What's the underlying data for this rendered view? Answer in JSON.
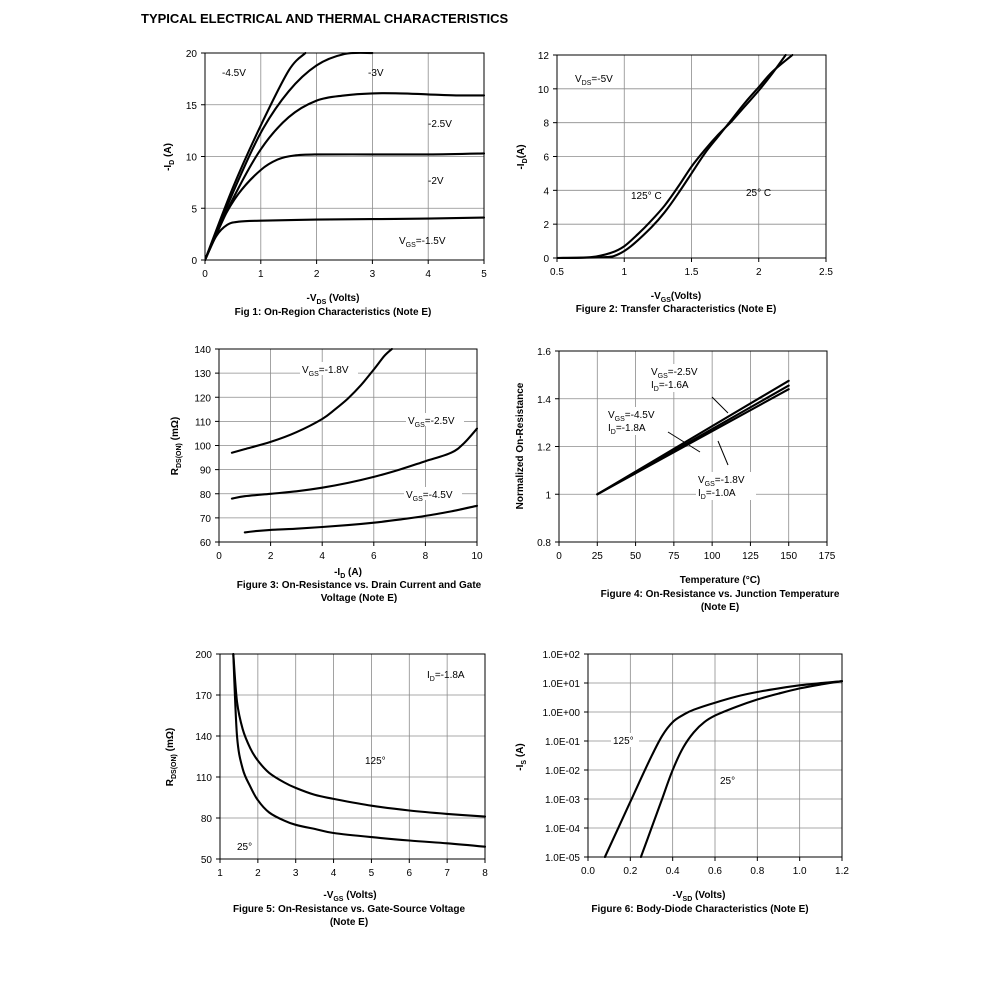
{
  "page": {
    "title": "TYPICAL ELECTRICAL AND THERMAL CHARACTERISTICS"
  },
  "chart_data": [
    {
      "type": "line",
      "xlabel": "-VDS (Volts)",
      "ylabel": "-ID (A)",
      "caption": "Fig 1: On-Region Characteristics (Note E)",
      "xlim": [
        0,
        5
      ],
      "ylim": [
        0,
        20
      ],
      "xticks": [
        0,
        1,
        2,
        3,
        4,
        5
      ],
      "yticks": [
        0,
        5,
        10,
        15,
        20
      ],
      "tick_labels_x": [
        "0",
        "1",
        "2",
        "3",
        "4",
        "5"
      ],
      "tick_labels_y": [
        "0",
        "5",
        "10",
        "15",
        "20"
      ],
      "grid": true,
      "series": [
        {
          "name": "-4.5V",
          "x": [
            0,
            0.5,
            1.0,
            1.5,
            1.8
          ],
          "y": [
            0,
            7,
            13,
            18.3,
            20
          ]
        },
        {
          "name": "-3V",
          "x": [
            0,
            0.5,
            1.0,
            1.5,
            2.0,
            2.5,
            3.0
          ],
          "y": [
            0,
            6.5,
            12.3,
            16.3,
            18.8,
            19.9,
            20
          ]
        },
        {
          "name": "-2.5V",
          "x": [
            0,
            0.5,
            1.0,
            1.5,
            2.0,
            2.5,
            3.0,
            3.5,
            4.0,
            4.5,
            5.0
          ],
          "y": [
            0,
            5.9,
            10.7,
            13.8,
            15.4,
            15.9,
            16.1,
            16.1,
            16.0,
            15.9,
            15.9
          ]
        },
        {
          "name": "-2V",
          "x": [
            0,
            0.3,
            0.6,
            1.0,
            1.3,
            1.6,
            2.0,
            3.0,
            4.0,
            5.0
          ],
          "y": [
            0,
            3.7,
            6.4,
            8.7,
            9.7,
            10.1,
            10.2,
            10.2,
            10.2,
            10.3
          ]
        },
        {
          "name": "VGS=-1.5V",
          "x": [
            0,
            0.2,
            0.4,
            0.6,
            1.0,
            2.0,
            3.0,
            4.0,
            5.0
          ],
          "y": [
            0,
            2.3,
            3.4,
            3.7,
            3.8,
            3.9,
            3.95,
            4.0,
            4.1
          ]
        }
      ],
      "labels": [
        "-4.5V",
        "-3V",
        "-2.5V",
        "-2V",
        "VGS=-1.5V"
      ]
    },
    {
      "type": "line",
      "xlabel": "-VGS(Volts)",
      "ylabel": "-ID(A)",
      "caption": "Figure 2: Transfer Characteristics (Note E)",
      "xlim": [
        0.5,
        2.5
      ],
      "ylim": [
        0,
        12
      ],
      "xticks": [
        0.5,
        1,
        1.5,
        2,
        2.5
      ],
      "yticks": [
        0,
        2,
        4,
        6,
        8,
        10,
        12
      ],
      "tick_labels_x": [
        "0.5",
        "1",
        "1.5",
        "2",
        "2.5"
      ],
      "tick_labels_y": [
        "0",
        "2",
        "4",
        "6",
        "8",
        "10",
        "12"
      ],
      "grid": true,
      "series": [
        {
          "name": "125° C",
          "x": [
            0.5,
            0.75,
            0.9,
            1.0,
            1.1,
            1.2,
            1.3,
            1.4,
            1.5,
            1.6,
            1.7,
            1.8,
            1.9,
            2.0,
            2.1,
            2.2
          ],
          "y": [
            0,
            0.05,
            0.3,
            0.7,
            1.4,
            2.2,
            3.1,
            4.2,
            5.4,
            6.4,
            7.3,
            8.1,
            9.0,
            9.9,
            10.9,
            12.0
          ]
        },
        {
          "name": "25° C",
          "x": [
            0.5,
            0.85,
            0.95,
            1.05,
            1.2,
            1.3,
            1.4,
            1.5,
            1.6,
            1.7,
            1.8,
            1.9,
            2.0,
            2.1,
            2.25
          ],
          "y": [
            0,
            0.05,
            0.2,
            0.7,
            1.8,
            2.7,
            3.8,
            5.0,
            6.2,
            7.2,
            8.2,
            9.2,
            10.1,
            11.0,
            12.0
          ]
        }
      ],
      "labels": [
        "VDS=-5V",
        "125° C",
        "25° C"
      ]
    },
    {
      "type": "line",
      "xlabel": "-ID (A)",
      "ylabel": "RDS(ON) (mΩ)",
      "caption_lines": [
        "Figure 3: On-Resistance vs. Drain Current and Gate",
        "Voltage (Note E)"
      ],
      "xlim": [
        0,
        10
      ],
      "ylim": [
        60,
        140
      ],
      "xticks": [
        0,
        2,
        4,
        6,
        8,
        10
      ],
      "yticks": [
        60,
        70,
        80,
        90,
        100,
        110,
        120,
        130,
        140
      ],
      "tick_labels_x": [
        "0",
        "2",
        "4",
        "6",
        "8",
        "10"
      ],
      "tick_labels_y": [
        "60",
        "70",
        "80",
        "90",
        "100",
        "110",
        "120",
        "130",
        "140"
      ],
      "grid": true,
      "series": [
        {
          "name": "VGS=-1.8V",
          "x": [
            0.5,
            1.0,
            2.0,
            3.0,
            4.0,
            4.5,
            5.0,
            5.5,
            6.0,
            6.4,
            6.7
          ],
          "y": [
            97,
            98.5,
            101.5,
            105.5,
            111,
            115,
            119.5,
            125,
            131.5,
            137,
            140
          ]
        },
        {
          "name": "VGS=-2.5V",
          "x": [
            0.5,
            1.0,
            2.0,
            3.0,
            4.0,
            5.0,
            6.0,
            7.0,
            8.0,
            9.0,
            9.5,
            10.0
          ],
          "y": [
            78,
            79,
            80,
            81,
            82.5,
            84.5,
            87,
            90,
            93.5,
            97,
            101,
            107
          ]
        },
        {
          "name": "VGS=-4.5V",
          "x": [
            1.0,
            1.5,
            2.0,
            3.0,
            4.0,
            5.0,
            6.0,
            7.0,
            8.0,
            9.0,
            10.0
          ],
          "y": [
            64,
            64.6,
            65,
            65.5,
            66.2,
            67,
            68,
            69.3,
            70.8,
            72.7,
            75
          ]
        }
      ],
      "labels": [
        "VGS=-1.8V",
        "VGS=-2.5V",
        "VGS=-4.5V"
      ]
    },
    {
      "type": "line",
      "xlabel": "Temperature (°C)",
      "ylabel": "Normalized On-Resistance",
      "caption_lines": [
        "Figure 4: On-Resistance vs. Junction Temperature",
        "(Note E)"
      ],
      "xlim": [
        0,
        175
      ],
      "ylim": [
        0.8,
        1.6
      ],
      "xticks": [
        0,
        25,
        50,
        75,
        100,
        125,
        150,
        175
      ],
      "yticks": [
        0.8,
        1,
        1.2,
        1.4,
        1.6
      ],
      "tick_labels_x": [
        "0",
        "25",
        "50",
        "75",
        "100",
        "125",
        "150",
        "175"
      ],
      "tick_labels_y": [
        "0.8",
        "1",
        "1.2",
        "1.4",
        "1.6"
      ],
      "grid": true,
      "series": [
        {
          "name": "VGS=-2.5V ID=-1.6A",
          "x": [
            25,
            150
          ],
          "y": [
            1.0,
            1.475
          ]
        },
        {
          "name": "VGS=-4.5V ID=-1.8A",
          "x": [
            25,
            150
          ],
          "y": [
            1.0,
            1.455
          ]
        },
        {
          "name": "VGS=-1.8V ID=-1.0A",
          "x": [
            25,
            150
          ],
          "y": [
            1.0,
            1.44
          ]
        }
      ],
      "labels": [
        {
          "vgs": "VGS=-2.5V",
          "id": "ID=-1.6A"
        },
        {
          "vgs": "VGS=-4.5V",
          "id": "ID=-1.8A"
        },
        {
          "vgs": "VGS=-1.8V",
          "id": "ID=-1.0A"
        }
      ]
    },
    {
      "type": "line",
      "xlabel": "-VGS (Volts)",
      "ylabel": "RDS(ON) (mΩ)",
      "caption_lines": [
        "Figure 5: On-Resistance vs. Gate-Source Voltage",
        "(Note E)"
      ],
      "xlim": [
        1,
        8
      ],
      "ylim": [
        50,
        200
      ],
      "xticks": [
        1,
        2,
        3,
        4,
        5,
        6,
        7,
        8
      ],
      "yticks": [
        50,
        80,
        110,
        140,
        170,
        200
      ],
      "tick_labels_x": [
        "1",
        "2",
        "3",
        "4",
        "5",
        "6",
        "7",
        "8"
      ],
      "tick_labels_y": [
        "50",
        "80",
        "110",
        "140",
        "170",
        "200"
      ],
      "grid": true,
      "series": [
        {
          "name": "125°",
          "x": [
            1.35,
            1.45,
            1.6,
            1.8,
            2.0,
            2.3,
            2.7,
            3.0,
            3.5,
            4.0,
            5.0,
            6.0,
            7.0,
            8.0
          ],
          "y": [
            200,
            165,
            145,
            131,
            122,
            113,
            106,
            102,
            97,
            94,
            89,
            85.5,
            83,
            81
          ]
        },
        {
          "name": "25°",
          "x": [
            1.35,
            1.45,
            1.6,
            1.8,
            2.0,
            2.3,
            2.7,
            3.0,
            3.5,
            4.0,
            5.0,
            6.0,
            7.0,
            8.0
          ],
          "y": [
            200,
            140,
            116,
            103,
            93,
            84,
            78,
            75,
            72,
            69,
            66,
            63.5,
            61.5,
            59
          ]
        }
      ],
      "labels": [
        "ID=-1.8A",
        "125°",
        "25°"
      ]
    },
    {
      "type": "line",
      "xlabel": "-VSD (Volts)",
      "ylabel": "-IS (A)",
      "caption": "Figure 6: Body-Diode Characteristics (Note E)",
      "xlim": [
        0,
        1.2
      ],
      "ylim_log10": [
        -5,
        2
      ],
      "y_scale": "log",
      "xticks": [
        0,
        0.2,
        0.4,
        0.6,
        0.8,
        1.0,
        1.2
      ],
      "yticks_log10": [
        -5,
        -4,
        -3,
        -2,
        -1,
        0,
        1,
        2
      ],
      "tick_labels_x": [
        "0.0",
        "0.2",
        "0.4",
        "0.6",
        "0.8",
        "1.0",
        "1.2"
      ],
      "tick_labels_y": [
        "1.0E-05",
        "1.0E-04",
        "1.0E-03",
        "1.0E-02",
        "1.0E-01",
        "1.0E+00",
        "1.0E+01",
        "1.0E+02"
      ],
      "grid": true,
      "series": [
        {
          "name": "125°",
          "x": [
            0.08,
            0.15,
            0.2,
            0.25,
            0.3,
            0.35,
            0.4,
            0.45,
            0.5,
            0.6,
            0.7,
            0.8,
            0.9,
            1.0,
            1.1,
            1.2
          ],
          "y": [
            1e-05,
            0.00013,
            0.0008,
            0.005,
            0.03,
            0.15,
            0.45,
            0.8,
            1.2,
            2.1,
            3.4,
            4.9,
            6.5,
            8.3,
            9.9,
            11.5
          ]
        },
        {
          "name": "25°",
          "x": [
            0.25,
            0.3,
            0.35,
            0.4,
            0.45,
            0.5,
            0.55,
            0.6,
            0.7,
            0.8,
            0.9,
            1.0,
            1.1,
            1.2
          ],
          "y": [
            1e-05,
            0.0001,
            0.001,
            0.01,
            0.06,
            0.2,
            0.45,
            0.75,
            1.5,
            2.7,
            4.3,
            6.5,
            8.9,
            11.5
          ]
        }
      ],
      "labels": [
        "125°",
        "25°"
      ]
    }
  ]
}
